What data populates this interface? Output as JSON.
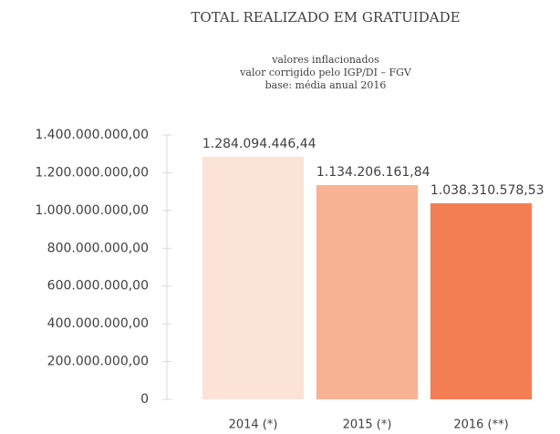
{
  "chart_data": {
    "type": "bar",
    "title": "TOTAL REALIZADO EM GRATUIDADE",
    "subtitle": [
      "valores inflacionados",
      "valor corrigido pelo IGP/DI – FGV",
      "base: média anual 2016"
    ],
    "categories": [
      "2014 (*)",
      "2015 (*)",
      "2016 (**)"
    ],
    "values": [
      1284094446.44,
      1134206161.84,
      1038310578.53
    ],
    "value_labels": [
      "1.284.094.446,44",
      "1.134.206.161,84",
      "1.038.310.578,53"
    ],
    "colors": [
      "#fbe3d8",
      "#f8b294",
      "#f47e54"
    ],
    "ylim": [
      0,
      1400000000
    ],
    "yticks": [
      0,
      {
        "value": 200000000,
        "label": "200.000.000,00"
      },
      {
        "value": 400000000,
        "label": "400.000.000,00"
      },
      {
        "value": 600000000,
        "label": "600.000.000,00"
      },
      {
        "value": 800000000,
        "label": "800.000.000,00"
      },
      {
        "value": 1000000000,
        "label": "1.000.000.000,00"
      },
      {
        "value": 1200000000,
        "label": "1.200.000.000,00"
      },
      {
        "value": 1400000000,
        "label": "1.400.000.000,00"
      }
    ],
    "grid": false
  }
}
